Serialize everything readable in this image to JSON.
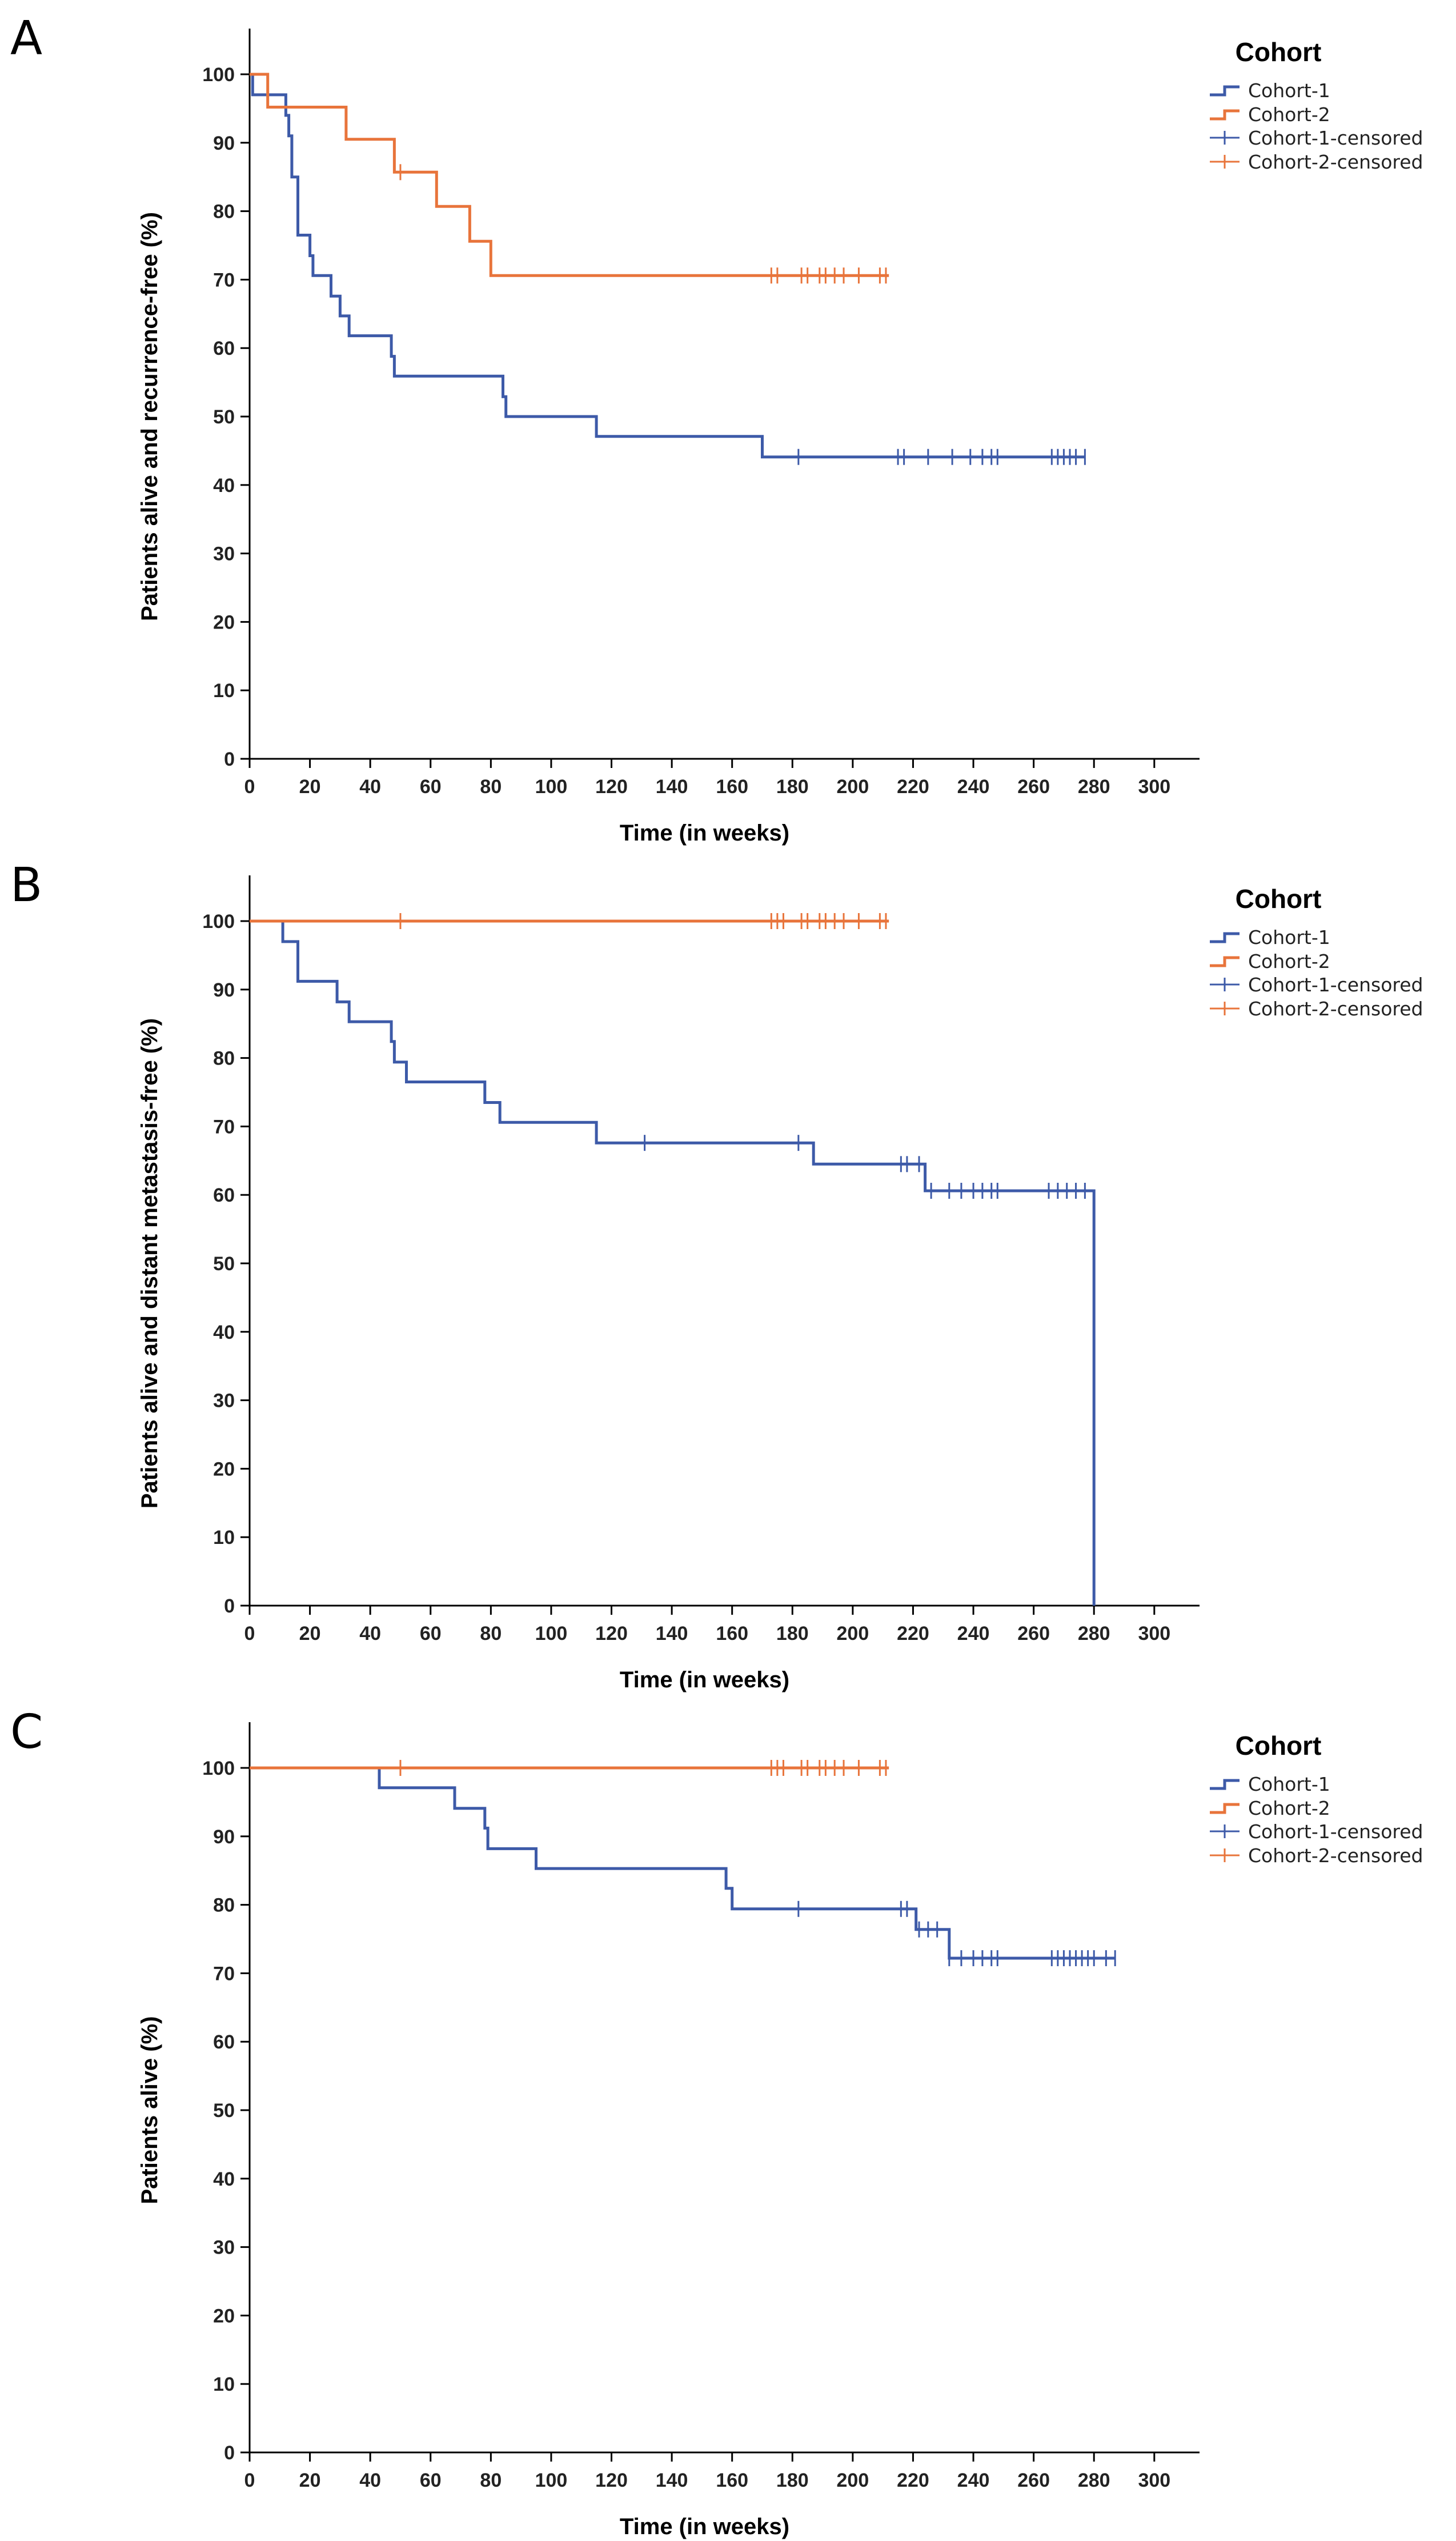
{
  "chart_data": [
    {
      "panel": "A",
      "type": "line",
      "ylabel": "Patients alive and recurrence-free (%)",
      "xlabel": "Time (in weeks)",
      "xlim": [
        0,
        300
      ],
      "ylim": [
        0,
        100
      ],
      "xticks": [
        "0",
        "20",
        "40",
        "60",
        "80",
        "100",
        "120",
        "140",
        "160",
        "180",
        "200",
        "220",
        "240",
        "260",
        "280",
        "300"
      ],
      "yticks": [
        "0",
        "10",
        "20",
        "30",
        "40",
        "50",
        "60",
        "70",
        "80",
        "90",
        "100"
      ],
      "legend_title": "Cohort",
      "legend_position": "top-right",
      "legend": [
        "Cohort-1",
        "Cohort-2",
        "Cohort-1-censored",
        "Cohort-2-censored"
      ],
      "series": [
        {
          "name": "Cohort-1",
          "color": "#3d5aa8",
          "steps": [
            [
              0,
              100
            ],
            [
              1,
              97
            ],
            [
              12,
              94
            ],
            [
              13,
              91
            ],
            [
              14,
              85
            ],
            [
              16,
              76.5
            ],
            [
              20,
              73.5
            ],
            [
              21,
              70.6
            ],
            [
              27,
              67.6
            ],
            [
              30,
              64.7
            ],
            [
              33,
              61.8
            ],
            [
              47,
              58.8
            ],
            [
              48,
              55.9
            ],
            [
              84,
              52.9
            ],
            [
              85,
              50
            ],
            [
              115,
              47.1
            ],
            [
              170,
              44.1
            ]
          ],
          "end": 277,
          "censored_x": [
            182,
            215,
            217,
            225,
            233,
            239,
            243,
            246,
            248,
            266,
            268,
            270,
            272,
            274,
            277
          ],
          "censored_y": 44.1
        },
        {
          "name": "Cohort-2",
          "color": "#e8743b",
          "steps": [
            [
              0,
              100
            ],
            [
              6,
              95.2
            ],
            [
              32,
              90.5
            ],
            [
              48,
              85.7
            ],
            [
              62,
              80.7
            ],
            [
              73,
              75.6
            ],
            [
              80,
              70.6
            ]
          ],
          "end": 212,
          "censored_x": [
            50,
            173,
            175,
            183,
            185,
            189,
            191,
            194,
            197,
            202,
            209,
            211
          ],
          "censored_y_by_x": {
            "50": 85.7
          },
          "censored_y": 70.6
        }
      ]
    },
    {
      "panel": "B",
      "type": "line",
      "ylabel": "Patients alive and distant metastasis-free (%)",
      "xlabel": "Time (in weeks)",
      "xlim": [
        0,
        300
      ],
      "ylim": [
        0,
        100
      ],
      "xticks": [
        "0",
        "20",
        "40",
        "60",
        "80",
        "100",
        "120",
        "140",
        "160",
        "180",
        "200",
        "220",
        "240",
        "260",
        "280",
        "300"
      ],
      "yticks": [
        "0",
        "10",
        "20",
        "30",
        "40",
        "50",
        "60",
        "70",
        "80",
        "90",
        "100"
      ],
      "legend_title": "Cohort",
      "legend_position": "top-right",
      "legend": [
        "Cohort-1",
        "Cohort-2",
        "Cohort-1-censored",
        "Cohort-2-censored"
      ],
      "series": [
        {
          "name": "Cohort-1",
          "color": "#3d5aa8",
          "steps": [
            [
              0,
              100
            ],
            [
              11,
              97
            ],
            [
              16,
              91.2
            ],
            [
              29,
              88.2
            ],
            [
              33,
              85.3
            ],
            [
              47,
              82.4
            ],
            [
              48,
              79.4
            ],
            [
              52,
              76.5
            ],
            [
              78,
              73.5
            ],
            [
              83,
              70.6
            ],
            [
              115,
              67.6
            ],
            [
              187,
              64.5
            ],
            [
              224,
              60.6
            ],
            [
              280,
              0
            ]
          ],
          "end": 280,
          "censored_x": [
            131,
            182,
            216,
            218,
            222,
            226,
            232,
            236,
            240,
            243,
            246,
            248,
            265,
            268,
            271,
            274,
            277
          ],
          "censored_y_by_x": {
            "131": 67.6,
            "182": 67.6,
            "216": 64.5,
            "218": 64.5,
            "222": 64.5
          },
          "censored_y": 60.6
        },
        {
          "name": "Cohort-2",
          "color": "#e8743b",
          "steps": [
            [
              0,
              100
            ]
          ],
          "end": 212,
          "censored_x": [
            50,
            173,
            175,
            177,
            183,
            185,
            189,
            191,
            194,
            197,
            202,
            209,
            211
          ],
          "censored_y": 100
        }
      ]
    },
    {
      "panel": "C",
      "type": "line",
      "ylabel": "Patients alive (%)",
      "xlabel": "Time (in weeks)",
      "xlim": [
        0,
        300
      ],
      "ylim": [
        0,
        100
      ],
      "xticks": [
        "0",
        "20",
        "40",
        "60",
        "80",
        "100",
        "120",
        "140",
        "160",
        "180",
        "200",
        "220",
        "240",
        "260",
        "280",
        "300"
      ],
      "yticks": [
        "0",
        "10",
        "20",
        "30",
        "40",
        "50",
        "60",
        "70",
        "80",
        "90",
        "100"
      ],
      "legend_title": "Cohort",
      "legend_position": "top-right",
      "legend": [
        "Cohort-1",
        "Cohort-2",
        "Cohort-1-censored",
        "Cohort-2-censored"
      ],
      "series": [
        {
          "name": "Cohort-1",
          "color": "#3d5aa8",
          "steps": [
            [
              0,
              100
            ],
            [
              43,
              97.1
            ],
            [
              68,
              94.1
            ],
            [
              78,
              91.2
            ],
            [
              79,
              88.2
            ],
            [
              95,
              85.3
            ],
            [
              158,
              82.4
            ],
            [
              160,
              79.4
            ],
            [
              221,
              76.4
            ],
            [
              232,
              72.2
            ]
          ],
          "end": 287,
          "censored_x": [
            182,
            216,
            218,
            222,
            225,
            228,
            232,
            236,
            240,
            243,
            246,
            248,
            266,
            268,
            270,
            272,
            274,
            276,
            278,
            280,
            284,
            287
          ],
          "censored_y_by_x": {
            "182": 79.4,
            "216": 79.4,
            "218": 79.4,
            "222": 76.4,
            "225": 76.4,
            "228": 76.4
          },
          "censored_y": 72.2
        },
        {
          "name": "Cohort-2",
          "color": "#e8743b",
          "steps": [
            [
              0,
              100
            ]
          ],
          "end": 212,
          "censored_x": [
            50,
            173,
            175,
            177,
            183,
            185,
            189,
            191,
            194,
            197,
            202,
            209,
            211
          ],
          "censored_y": 100
        }
      ]
    }
  ]
}
